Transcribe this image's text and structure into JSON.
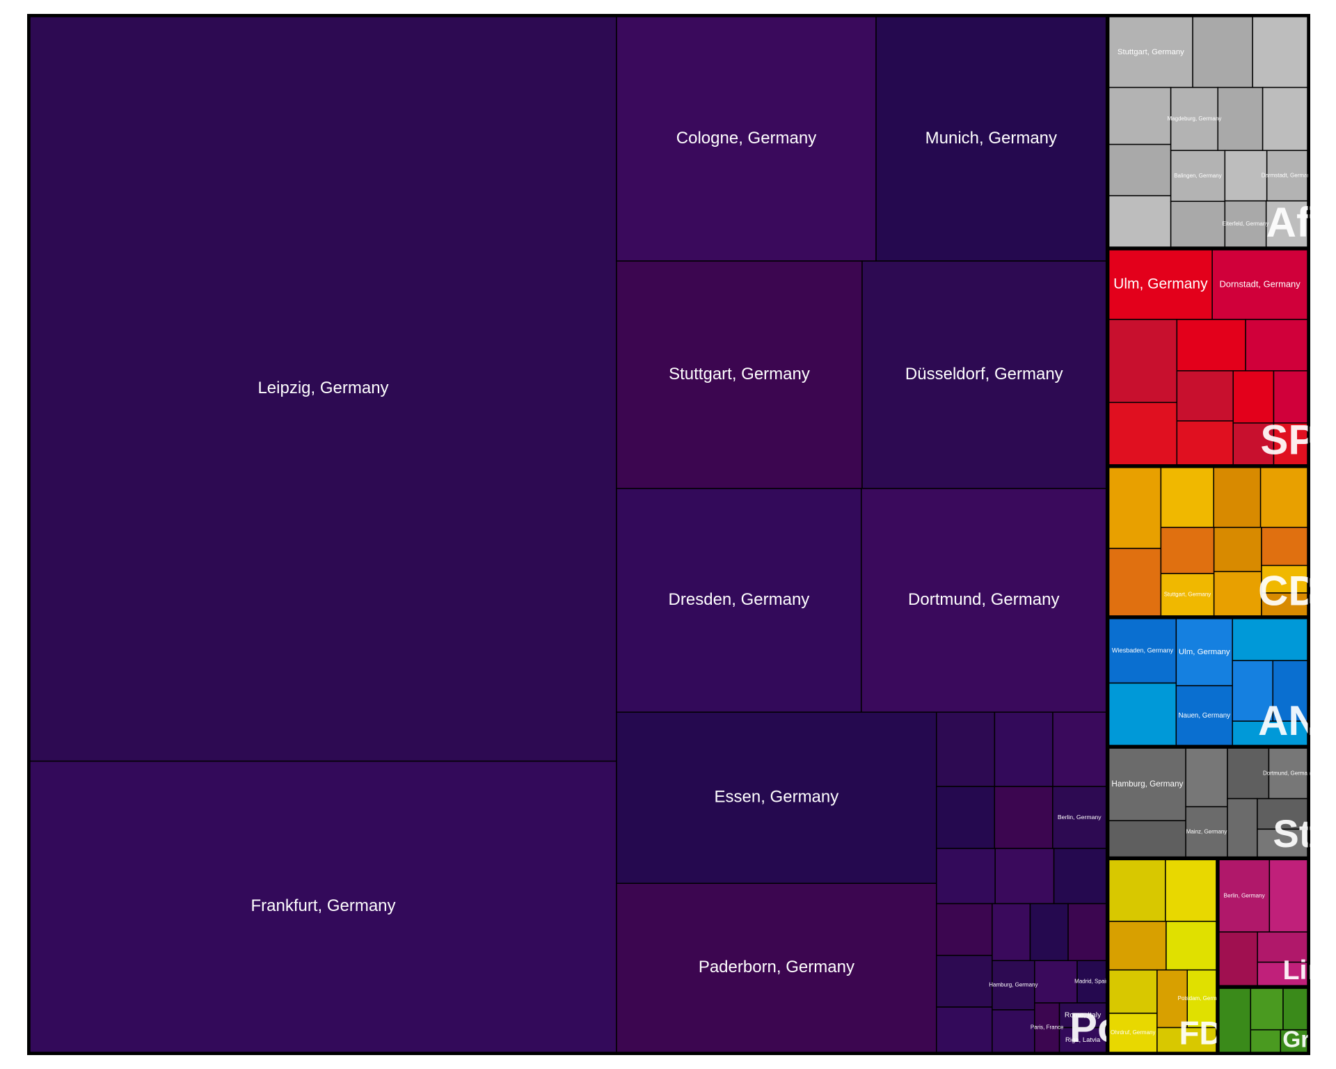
{
  "chart_data": {
    "type": "treemap",
    "groups": [
      {
        "name": "Pol",
        "colors": [
          "#2d0a52",
          "#330a5a",
          "#3a0a5c",
          "#25094f",
          "#3c0650"
        ],
        "labels": [
          "Leipzig, Germany",
          "Frankfurt, Germany",
          "Cologne, Germany",
          "Munich, Germany",
          "Stuttgart, Germany",
          "Düsseldorf, Germany",
          "Dresden, Germany",
          "Dortmund, Germany",
          "Essen, Germany",
          "Paderborn, Germany",
          null,
          null,
          null,
          null,
          null,
          "Berlin, Germany",
          null,
          null,
          null,
          null,
          null,
          null,
          null,
          null,
          null,
          "Hamburg, Germany",
          null,
          null,
          "Madrid, Spain",
          "Paris, France",
          "Rome, Italy",
          "Riga, Latvia"
        ],
        "values": [
          606,
          237,
          88,
          78,
          77.5,
          77,
          76,
          76,
          76,
          75,
          6,
          6,
          5.5,
          5,
          5,
          4.6,
          4.5,
          4.5,
          4,
          4,
          4,
          3.5,
          3,
          3,
          3,
          2.9,
          2.5,
          2.5,
          1.7,
          1.7,
          1.6,
          1.6
        ]
      },
      {
        "name": "AfD",
        "colors": [
          "#b3b3b3",
          "#a9a9a9",
          "#bdbdbd"
        ],
        "labels": [
          "Stuttgart, Germany",
          null,
          null,
          null,
          null,
          null,
          "Magdeburg, Germany",
          null,
          null,
          "Balingen, Germany",
          null,
          null,
          "Darmstadt, Germany",
          "Eiterfeld, Germany",
          null
        ],
        "values": [
          8.4,
          6,
          5.5,
          5,
          4.5,
          4.5,
          4.2,
          4,
          4,
          3.9,
          3.5,
          3,
          2.9,
          2.7,
          2.7
        ]
      },
      {
        "name": "SPD",
        "colors": [
          "#e3001b",
          "#d0003a",
          "#c8102e",
          "#e01020"
        ],
        "labels": [
          "Ulm, Germany",
          "Dornstadt, Germany",
          null,
          null,
          null,
          null,
          null,
          null,
          null,
          null,
          null,
          null
        ],
        "values": [
          10.2,
          9.4,
          8,
          6,
          5,
          4.5,
          4,
          3.5,
          3,
          2.5,
          2.4,
          2
        ]
      },
      {
        "name": "CDU",
        "colors": [
          "#e8a000",
          "#e07010",
          "#f0b800",
          "#d88a00"
        ],
        "labels": [
          null,
          null,
          null,
          null,
          null,
          null,
          "Stuttgart, Germany",
          null,
          null,
          null,
          null,
          null
        ],
        "values": [
          6,
          5,
          4.5,
          4,
          4,
          3.5,
          3.2,
          3,
          3,
          2.5,
          1.8,
          1.5
        ]
      },
      {
        "name": "AND",
        "colors": [
          "#0a6fd0",
          "#0099d8",
          "#1580e0"
        ],
        "labels": [
          "Wiesbaden, Germany",
          null,
          "Ulm, Germany",
          "Nauen, Germany",
          null,
          null,
          null,
          null
        ],
        "values": [
          6.2,
          6,
          5.4,
          4.8,
          4.5,
          3.5,
          3,
          2.6
        ]
      },
      {
        "name": "Sta",
        "colors": [
          "#6b6b6b",
          "#5f5f5f",
          "#777777"
        ],
        "labels": [
          "Hamburg, Germany",
          null,
          null,
          "Mainz, Germany",
          null,
          "Dortmund, Germany",
          null,
          null,
          null
        ],
        "values": [
          8,
          4,
          3.5,
          3,
          3,
          2.8,
          2.5,
          2.2,
          2
        ]
      },
      {
        "name": "FDP",
        "colors": [
          "#d8c800",
          "#e8d800",
          "#d8a000",
          "#e0e000"
        ],
        "labels": [
          null,
          null,
          null,
          null,
          null,
          "Ohrdruf, Germany",
          null,
          "Potsdam, Germany",
          null
        ],
        "values": [
          5,
          4.5,
          4,
          3.5,
          3,
          2.7,
          2.5,
          2.4,
          2.1
        ]
      },
      {
        "name": "Lin",
        "colors": [
          "#b0186a",
          "#c0207a",
          "#a01050"
        ],
        "labels": [
          "Berlin, Germany",
          null,
          null,
          null,
          null
        ],
        "values": [
          5.3,
          4,
          3,
          2.2,
          1.7
        ]
      },
      {
        "name": "Grü",
        "colors": [
          "#3a8a1a",
          "#4a9a20"
        ],
        "labels": [
          null,
          null,
          null,
          null,
          null
        ],
        "values": [
          3,
          2,
          1.5,
          1,
          0.9
        ]
      }
    ]
  }
}
